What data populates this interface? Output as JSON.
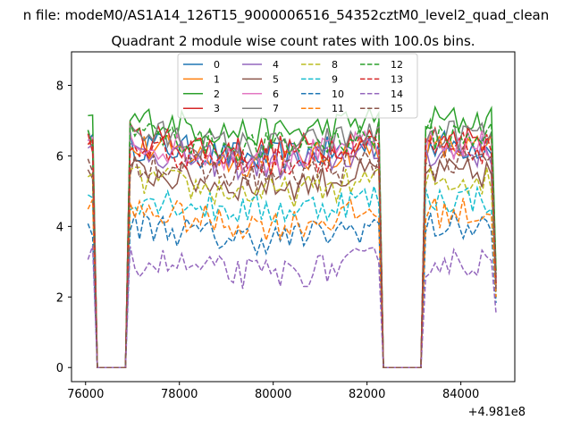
{
  "chart_data": {
    "type": "line",
    "suptitle": "n file: modeM0/AS1A14_126T15_9000006516_54352cztM0_level2_quad_clean",
    "title": "Quadrant 2 module wise count rates with 100.0s bins.",
    "xlabel": "",
    "ylabel": "",
    "offset_text": "+4.981e8",
    "xlim": [
      75700,
      85150
    ],
    "ylim": [
      -0.4,
      8.95
    ],
    "x_ticks": [
      76000,
      78000,
      80000,
      82000,
      84000
    ],
    "x_tick_labels": [
      "76000",
      "78000",
      "80000",
      "82000",
      "84000"
    ],
    "y_ticks": [
      0,
      2,
      4,
      6,
      8
    ],
    "y_tick_labels": [
      "0",
      "2",
      "4",
      "6",
      "8"
    ],
    "grid": false,
    "legend_position": "top-center",
    "legend_columns": 4,
    "x_start": 76050,
    "bin": 100,
    "n_points": 88,
    "gaps": [
      [
        76250,
        76850
      ],
      [
        82350,
        83150
      ]
    ],
    "series": [
      {
        "name": "0",
        "color": "#1f77b4",
        "style": "solid",
        "level": 6.3
      },
      {
        "name": "1",
        "color": "#ff7f0e",
        "style": "solid",
        "level": 6.2
      },
      {
        "name": "2",
        "color": "#2ca02c",
        "style": "solid",
        "level": 7.0
      },
      {
        "name": "3",
        "color": "#d62728",
        "style": "solid",
        "level": 6.5
      },
      {
        "name": "4",
        "color": "#9467bd",
        "style": "solid",
        "level": 6.1
      },
      {
        "name": "5",
        "color": "#8c564b",
        "style": "solid",
        "level": 5.5
      },
      {
        "name": "6",
        "color": "#e377c2",
        "style": "solid",
        "level": 6.3
      },
      {
        "name": "7",
        "color": "#7f7f7f",
        "style": "solid",
        "level": 6.6
      },
      {
        "name": "8",
        "color": "#bcbd22",
        "style": "dashed",
        "level": 5.3
      },
      {
        "name": "9",
        "color": "#17becf",
        "style": "dashed",
        "level": 4.8
      },
      {
        "name": "10",
        "color": "#1f77b4",
        "style": "dashed",
        "level": 4.0
      },
      {
        "name": "11",
        "color": "#ff7f0e",
        "style": "dashed",
        "level": 4.4
      },
      {
        "name": "12",
        "color": "#2ca02c",
        "style": "dashed",
        "level": 6.6
      },
      {
        "name": "13",
        "color": "#d62728",
        "style": "dashed",
        "level": 6.2
      },
      {
        "name": "14",
        "color": "#9467bd",
        "style": "dashed",
        "level": 3.0
      },
      {
        "name": "15",
        "color": "#8c564b",
        "style": "dashed",
        "level": 5.8
      }
    ]
  }
}
